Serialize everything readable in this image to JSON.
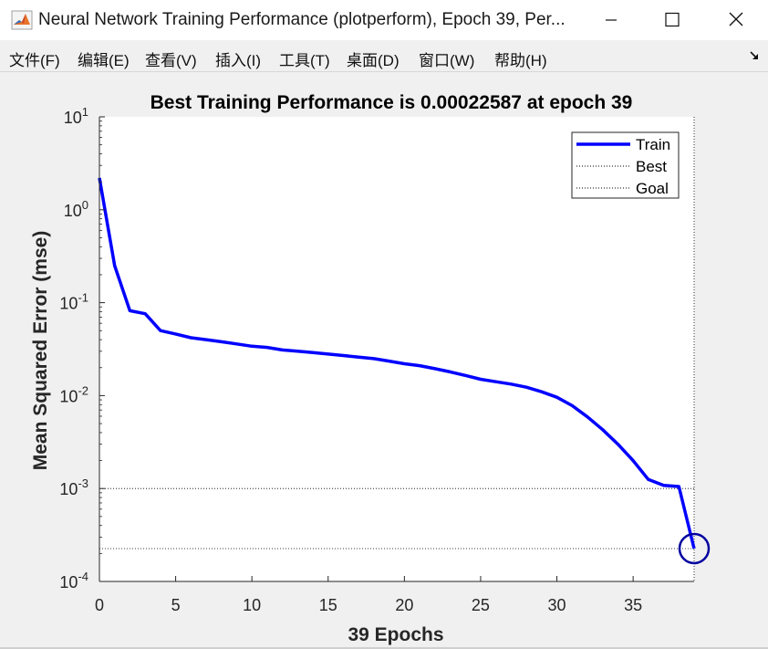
{
  "window": {
    "title": "Neural Network Training Performance (plotperform), Epoch 39, Per...",
    "icon": "matlab-icon",
    "controls": [
      "minimize-icon",
      "maximize-icon",
      "close-icon"
    ]
  },
  "menu": {
    "items": [
      "文件(F)",
      "编辑(E)",
      "查看(V)",
      "插入(I)",
      "工具(T)",
      "桌面(D)",
      "窗口(W)",
      "帮助(H)"
    ],
    "dock_icon": "dock-arrow-icon"
  },
  "chart_data": {
    "type": "line",
    "title": "Best Training Performance is 0.00022587 at epoch 39",
    "xlabel": "39 Epochs",
    "ylabel": "Mean Squared Error  (mse)",
    "yscale": "log",
    "xlim": [
      0,
      39
    ],
    "ylim": [
      0.0001,
      10
    ],
    "xticks": [
      0,
      5,
      10,
      15,
      20,
      25,
      30,
      35
    ],
    "xtick_labels": [
      "0",
      "5",
      "10",
      "15",
      "20",
      "25",
      "30",
      "35"
    ],
    "ytick_labels": [
      {
        "base": "10",
        "exp": "-4"
      },
      {
        "base": "10",
        "exp": "-3"
      },
      {
        "base": "10",
        "exp": "-2"
      },
      {
        "base": "10",
        "exp": "-1"
      },
      {
        "base": "10",
        "exp": "0"
      },
      {
        "base": "10",
        "exp": "1"
      }
    ],
    "grid": false,
    "legend_position": "top-right",
    "series": [
      {
        "name": "Train",
        "color": "#0000ff",
        "style": "solid",
        "x": [
          0,
          1,
          2,
          3,
          4,
          5,
          6,
          7,
          8,
          9,
          10,
          11,
          12,
          13,
          14,
          15,
          16,
          17,
          18,
          19,
          20,
          21,
          22,
          23,
          24,
          25,
          26,
          27,
          28,
          29,
          30,
          31,
          32,
          33,
          34,
          35,
          36,
          37,
          38,
          39
        ],
        "y": [
          2.2,
          0.25,
          0.082,
          0.076,
          0.05,
          0.046,
          0.042,
          0.04,
          0.038,
          0.036,
          0.034,
          0.033,
          0.031,
          0.03,
          0.029,
          0.028,
          0.027,
          0.026,
          0.025,
          0.0235,
          0.022,
          0.021,
          0.0195,
          0.018,
          0.0165,
          0.015,
          0.0141,
          0.0133,
          0.0123,
          0.011,
          0.0096,
          0.0078,
          0.0059,
          0.0043,
          0.003,
          0.002,
          0.00125,
          0.00108,
          0.00105,
          0.000226
        ]
      },
      {
        "name": "Best",
        "color": "#000000",
        "style": "dotted",
        "value": 0.00022587,
        "epoch": 39
      },
      {
        "name": "Goal",
        "color": "#000000",
        "style": "dotted",
        "value": 0.001
      }
    ],
    "best_marker": {
      "x": 39,
      "y": 0.00022587,
      "shape": "circle",
      "color": "#0000a0"
    }
  }
}
